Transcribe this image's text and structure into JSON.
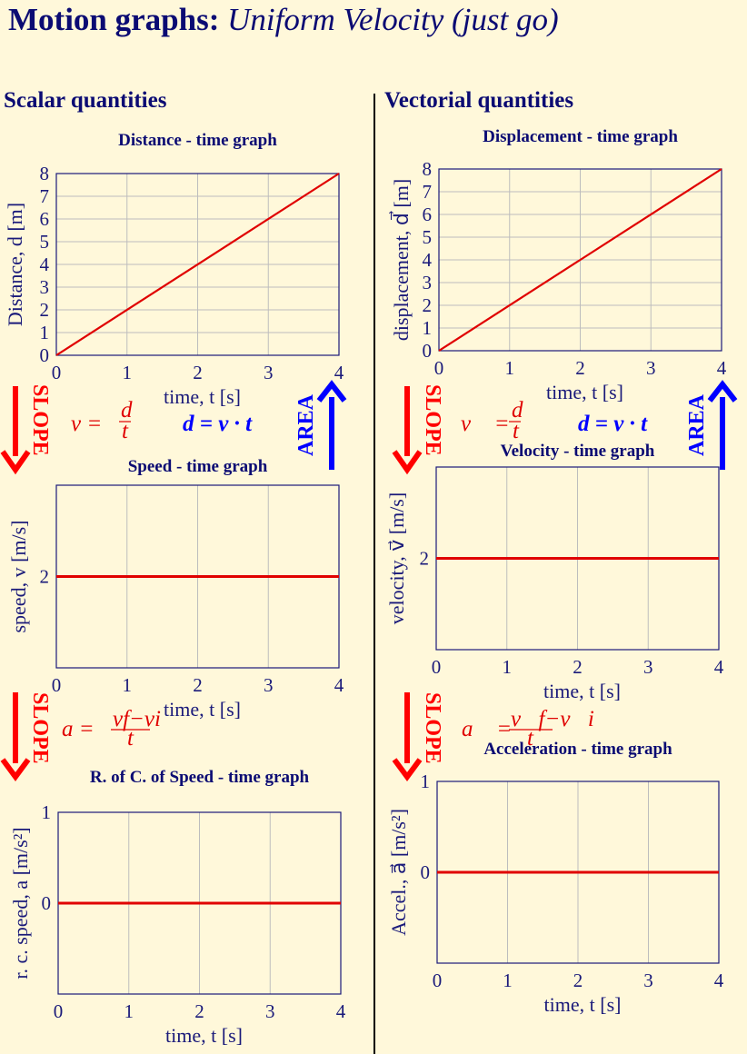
{
  "title": {
    "bold": "Motion graphs:",
    "italic": "Uniform Velocity (just go)"
  },
  "columns": {
    "left": "Scalar quantities",
    "right": "Vectorial quantities"
  },
  "colors": {
    "line": "#e00000",
    "axes": "#1a1a7a",
    "grid": "#bdbdbd",
    "slope": "#ff0000",
    "area": "#0000ff",
    "background": "#fff8da"
  },
  "arrows": [
    {
      "label": "SLOPE",
      "formula": "v = d/t"
    },
    {
      "label": "AREA",
      "formula": "d = v · t"
    },
    {
      "label": "SLOPE",
      "formula": "v⃗ = d⃗/t"
    },
    {
      "label": "AREA",
      "formula": "d = v · t"
    },
    {
      "label": "SLOPE",
      "formula": "a = (vf − vi)/t"
    },
    {
      "label": "SLOPE",
      "formula": "a⃗ = (v⃗f − v⃗i)/t"
    }
  ],
  "chart_data": [
    {
      "type": "line",
      "title": "Distance - time graph",
      "xlabel": "time, t [s]",
      "ylabel": "Distance, d [m]",
      "xlim": [
        0,
        4
      ],
      "ylim": [
        0,
        8
      ],
      "xticks": [
        0,
        1,
        2,
        3,
        4
      ],
      "yticks": [
        0,
        1,
        2,
        3,
        4,
        5,
        6,
        7,
        8
      ],
      "grid": true,
      "x": [
        0,
        4
      ],
      "y": [
        0,
        8
      ]
    },
    {
      "type": "line",
      "title": "Displacement - time graph",
      "xlabel": "time, t [s]",
      "ylabel": "displacement, d⃗ [m]",
      "xlim": [
        0,
        4
      ],
      "ylim": [
        0,
        8
      ],
      "xticks": [
        0,
        1,
        2,
        3,
        4
      ],
      "yticks": [
        0,
        1,
        2,
        3,
        4,
        5,
        6,
        7,
        8
      ],
      "grid": true,
      "x": [
        0,
        4
      ],
      "y": [
        0,
        8
      ]
    },
    {
      "type": "line",
      "title": "Speed - time graph",
      "xlabel": "time, t [s]",
      "ylabel": "speed, v [m/s]",
      "xlim": [
        0,
        4
      ],
      "ylim": [
        0,
        4
      ],
      "xticks": [
        0,
        1,
        2,
        3,
        4
      ],
      "yticks": [
        2
      ],
      "grid": true,
      "x": [
        0,
        4
      ],
      "y": [
        2,
        2
      ]
    },
    {
      "type": "line",
      "title": "Velocity - time graph",
      "xlabel": "time, t [s]",
      "ylabel": "velocity, v⃗ [m/s]",
      "xlim": [
        0,
        4
      ],
      "ylim": [
        0,
        4
      ],
      "xticks": [
        0,
        1,
        2,
        3,
        4
      ],
      "yticks": [
        2
      ],
      "grid": true,
      "x": [
        0,
        4
      ],
      "y": [
        2,
        2
      ]
    },
    {
      "type": "line",
      "title": "R. of C. of Speed - time graph",
      "xlabel": "time, t [s]",
      "ylabel": "r. c. speed, a [m/s²]",
      "xlim": [
        0,
        4
      ],
      "ylim": [
        -1,
        1
      ],
      "xticks": [
        0,
        1,
        2,
        3,
        4
      ],
      "yticks": [
        0,
        1
      ],
      "grid": true,
      "x": [
        0,
        4
      ],
      "y": [
        0,
        0
      ]
    },
    {
      "type": "line",
      "title": "Acceleration - time graph",
      "xlabel": "time, t [s]",
      "ylabel": "Accel., a⃗ [m/s²]",
      "xlim": [
        0,
        4
      ],
      "ylim": [
        -1,
        1
      ],
      "xticks": [
        0,
        1,
        2,
        3,
        4
      ],
      "yticks": [
        0,
        1
      ],
      "grid": true,
      "x": [
        0,
        4
      ],
      "y": [
        0,
        0
      ]
    }
  ]
}
